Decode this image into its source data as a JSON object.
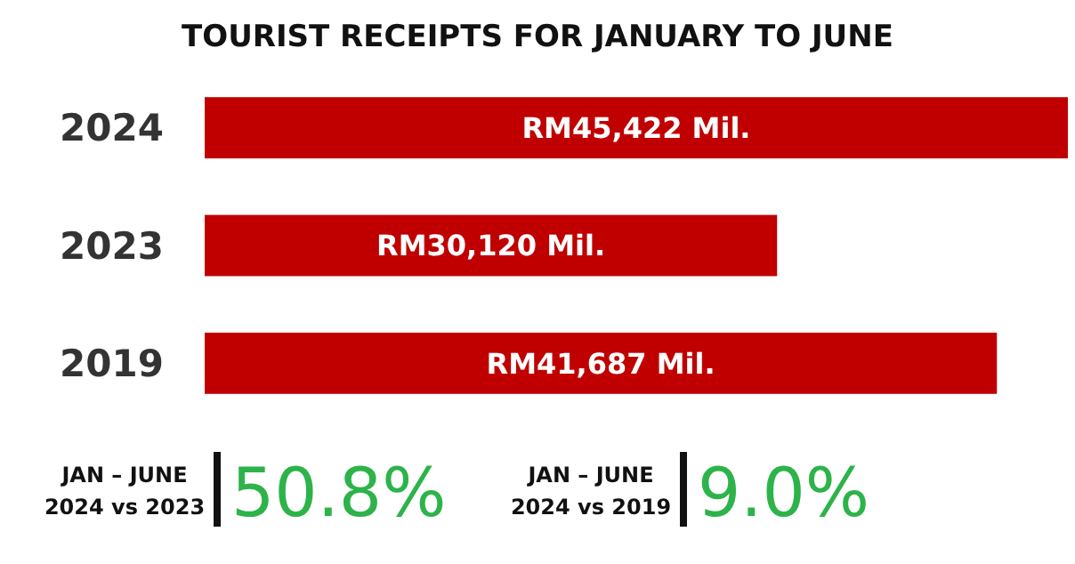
{
  "chart_data": {
    "type": "bar",
    "orientation": "horizontal",
    "title": "TOURIST RECEIPTS FOR JANUARY TO JUNE",
    "categories": [
      "2024",
      "2023",
      "2019"
    ],
    "values": [
      45422,
      30120,
      41687
    ],
    "value_labels": [
      "RM45,422 Mil.",
      "RM30,120 Mil.",
      "RM41,687 Mil."
    ],
    "color": "#c00000",
    "annotations": [
      "JAN – JUNE\n2024 vs 2023",
      "50.8%",
      "JAN – JUNE\n2024 vs 2019",
      "9.0%"
    ]
  }
}
